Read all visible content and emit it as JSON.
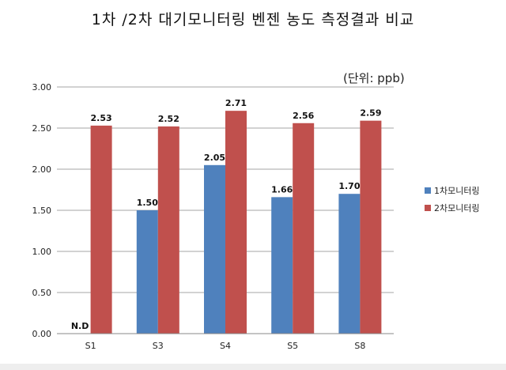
{
  "chart_data": {
    "type": "bar",
    "title": "1차 /2차 대기모니터링  벤젠 농도 측정결과 비교",
    "unit": "(단위: ppb)",
    "categories": [
      "S1",
      "S3",
      "S4",
      "S5",
      "S8"
    ],
    "ylim": [
      0,
      3
    ],
    "yticks": [
      "0.00",
      "0.50",
      "1.00",
      "1.50",
      "2.00",
      "2.50",
      "3.00"
    ],
    "grid": true,
    "legend_position": "right",
    "series": [
      {
        "name": "1차모니터링",
        "color": "#4f81bd",
        "values": [
          0,
          1.5,
          2.05,
          1.66,
          1.7
        ],
        "labels": [
          "N.D",
          "1.50",
          "2.05",
          "1.66",
          "1.70"
        ]
      },
      {
        "name": "2차모니터링",
        "color": "#c0504d",
        "values": [
          2.53,
          2.52,
          2.71,
          2.56,
          2.59
        ],
        "labels": [
          "2.53",
          "2.52",
          "2.71",
          "2.56",
          "2.59"
        ]
      }
    ]
  }
}
